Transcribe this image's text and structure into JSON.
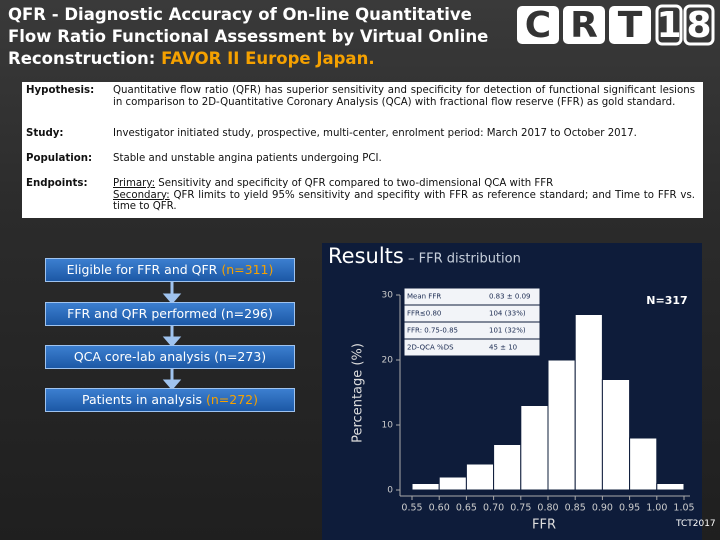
{
  "header": {
    "title": "QFR - Diagnostic Accuracy of On-line Quantitative Flow Ratio Functional Assessment by Virtual Online Reconstruction: ",
    "title_highlight": "FAVOR II Europe Japan.",
    "logo": [
      "C",
      "R",
      "T",
      "1",
      "8"
    ]
  },
  "study": {
    "hypothesis_label": "Hypothesis:",
    "hypothesis": "Quantitative flow ratio (QFR) has superior sensitivity and specificity for detection of functional significant lesions in comparison to 2D-Quantitative Coronary Analysis (QCA) with fractional flow reserve (FFR) as gold standard.",
    "study_label": "Study:",
    "study": "Investigator initiated study, prospective, multi-center, enrolment period: March 2017 to October 2017.",
    "population_label": "Population:",
    "population": "Stable and unstable angina patients undergoing PCI.",
    "endpoints_label": "Endpoints:",
    "primary_label": "Primary:",
    "primary": " Sensitivity and specificity of QFR compared to two-dimensional QCA with FFR",
    "secondary_label": "Secondary:",
    "secondary": " QFR limits to yield 95% sensitivity and specifity with FFR as reference standard; and Time to FFR vs. time to QFR."
  },
  "flow": [
    {
      "text": "Eligible for FFR and QFR ",
      "n": "(n=311)",
      "highlight": true
    },
    {
      "text": "FFR and QFR performed ",
      "n": "(n=296)",
      "highlight": false
    },
    {
      "text": "QCA core-lab analysis ",
      "n": "(n=273)",
      "highlight": false
    },
    {
      "text": "Patients in analysis ",
      "n": "(n=272)",
      "highlight": true
    }
  ],
  "chart_data": {
    "type": "histogram",
    "title": "Results",
    "subtitle": "– FFR distribution",
    "x_label": "FFR",
    "y_label": "Percentage (%)",
    "annotation": "N=317",
    "color": "#ffffff",
    "bins": [
      0.55,
      0.6,
      0.65,
      0.7,
      0.75,
      0.8,
      0.85,
      0.9,
      0.95,
      1.0,
      1.05
    ],
    "values": [
      1,
      2,
      4,
      7,
      13,
      20,
      27,
      17,
      8,
      1
    ],
    "xlim": [
      0.55,
      1.05
    ],
    "ylim": [
      0,
      30
    ],
    "xticks": [
      0.55,
      {
        "value": 0.6,
        "label": "0.60"
      },
      0.65,
      {
        "value": 0.7,
        "label": "0.70"
      },
      0.75,
      {
        "value": 0.8,
        "label": "0.80"
      },
      0.85,
      {
        "value": 0.9,
        "label": "0.90"
      },
      0.95,
      {
        "value": 1.0,
        "label": "1.00"
      },
      1.05
    ],
    "yticks": [
      0,
      10,
      20,
      30
    ],
    "inset_table": [
      [
        "Mean FFR",
        "0.83 ± 0.09"
      ],
      [
        "FFR≤0.80",
        "104 (33%)"
      ],
      [
        "FFR: 0.75-0.85",
        "101 (32%)"
      ],
      [
        "2D-QCA %DS",
        "45 ± 10"
      ]
    ]
  },
  "footer": "TCT2017"
}
